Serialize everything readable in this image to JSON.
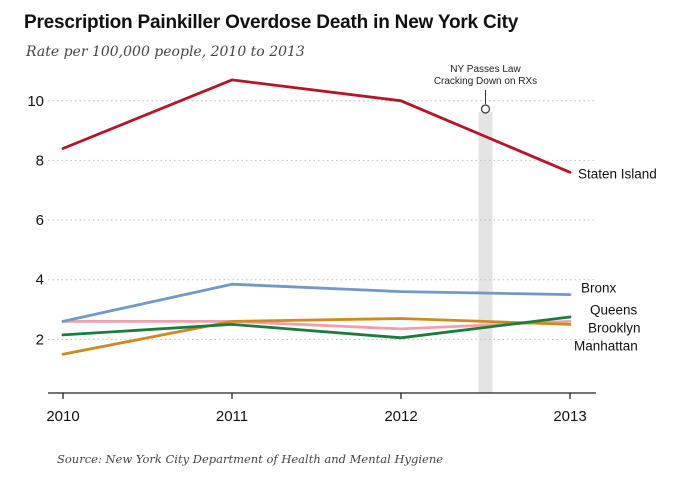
{
  "chart_data": {
    "type": "line",
    "title": "Prescription Painkiller Overdose Death in New York City",
    "subtitle": "Rate per 100,000 people, 2010 to 2013",
    "source": "Source: New York City Department of Health and Mental Hygiene",
    "x": [
      2010,
      2011,
      2012,
      2013
    ],
    "x_ticks": [
      "2010",
      "2011",
      "2012",
      "2013"
    ],
    "y_ticks": [
      "2",
      "4",
      "6",
      "8",
      "10"
    ],
    "ylim": [
      0.2,
      11.2
    ],
    "grid": "horizontal-dotted",
    "legend": "direct-labels-right",
    "series": [
      {
        "name": "Staten Island",
        "color": "#b5152b",
        "values": [
          8.4,
          10.7,
          10.0,
          7.6
        ]
      },
      {
        "name": "Bronx",
        "color": "#7099c8",
        "values": [
          2.6,
          3.85,
          3.6,
          3.5
        ]
      },
      {
        "name": "Queens",
        "color": "#1a7d3e",
        "values": [
          2.15,
          2.5,
          2.05,
          2.75
        ]
      },
      {
        "name": "Brooklyn",
        "color": "#cf8a1f",
        "values": [
          1.5,
          2.6,
          2.7,
          2.5
        ]
      },
      {
        "name": "Manhattan",
        "color": "#f0a0ab",
        "values": [
          2.6,
          2.6,
          2.35,
          2.6
        ]
      }
    ],
    "annotation": {
      "x": 2012.5,
      "lines": [
        "NY Passes Law",
        "Cracking Down on RXs"
      ]
    }
  }
}
